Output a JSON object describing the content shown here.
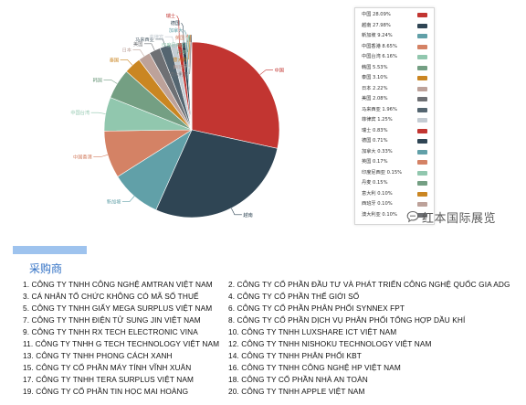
{
  "chart_data": {
    "type": "pie",
    "series": [
      {
        "label": "中国",
        "value": 28.09,
        "display": "28.09%",
        "color": "#c23531"
      },
      {
        "label": "越南",
        "value": 27.98,
        "display": "27.98%",
        "color": "#2f4554"
      },
      {
        "label": "新加坡",
        "value": 9.24,
        "display": "9.24%",
        "color": "#61a0a8"
      },
      {
        "label": "中国香港",
        "value": 8.65,
        "display": "8.65%",
        "color": "#d48265"
      },
      {
        "label": "中国台湾",
        "value": 6.16,
        "display": "6.16%",
        "color": "#91c7ae"
      },
      {
        "label": "韩国",
        "value": 5.53,
        "display": "5.53%",
        "color": "#749f83"
      },
      {
        "label": "泰国",
        "value": 3.1,
        "display": "3.10%",
        "color": "#ca8622"
      },
      {
        "label": "日本",
        "value": 2.22,
        "display": "2.22%",
        "color": "#bda29a"
      },
      {
        "label": "美国",
        "value": 2.08,
        "display": "2.08%",
        "color": "#6e7074"
      },
      {
        "label": "马来西亚",
        "value": 1.96,
        "display": "1.96%",
        "color": "#546570"
      },
      {
        "label": "菲律宾",
        "value": 1.25,
        "display": "1.25%",
        "color": "#c4ccd3"
      },
      {
        "label": "瑞士",
        "value": 0.83,
        "display": "0.83%",
        "color": "#c23531"
      },
      {
        "label": "德国",
        "value": 0.71,
        "display": "0.71%",
        "color": "#2f4554"
      },
      {
        "label": "加拿大",
        "value": 0.33,
        "display": "0.33%",
        "color": "#61a0a8"
      },
      {
        "label": "英国",
        "value": 0.17,
        "display": "0.17%",
        "color": "#d48265"
      },
      {
        "label": "印度尼西亚",
        "value": 0.15,
        "display": "0.15%",
        "color": "#91c7ae"
      },
      {
        "label": "丹麦",
        "value": 0.15,
        "display": "0.15%",
        "color": "#749f83"
      },
      {
        "label": "意大利",
        "value": 0.1,
        "display": "0.10%",
        "color": "#ca8622"
      },
      {
        "label": "西班牙",
        "value": 0.1,
        "display": "0.10%",
        "color": "#bda29a"
      },
      {
        "label": "澳大利亚",
        "value": 0.1,
        "display": "0.10%",
        "color": "#6e7074"
      }
    ]
  },
  "watermark": {
    "text": "红本国际展览",
    "icon": "chat-bubble-icon"
  },
  "buyers_section": {
    "title": "采购商",
    "accent_color": "#9ec3ee",
    "items": [
      "1. CÔNG TY TNHH CÔNG NGHỆ AMTRAN VIỆT NAM",
      "2. CÔNG TY CỔ PHẦN ĐẦU TƯ VÀ PHÁT TRIỂN CÔNG NGHỆ QUỐC GIA ADG",
      "3. CÁ NHÂN TỔ CHỨC KHÔNG CÓ MÃ SỐ THUẾ",
      "4. CÔNG TY CỔ PHẦN THẾ GIỚI SỐ",
      "5. CÔNG TY TNHH GIẤY MEGA SURPLUS VIỆT NAM",
      "6. CÔNG TY CỔ PHẦN PHÂN PHỐI SYNNEX FPT",
      "7. CÔNG TY TNHH ĐIỆN TỬ SUNG JIN VIỆT NAM",
      "8. CÔNG TY CỔ PHẦN DỊCH VỤ PHÂN PHỐI TỔNG HỢP DẦU KHÍ",
      "9. CÔNG TY TNHH RX TECH ELECTRONIC VINA",
      "10. CÔNG TY TNHH LUXSHARE ICT VIỆT NAM",
      "11. CÔNG TY TNHH G TECH TECHNOLOGY VIỆT NAM",
      "12. CÔNG TY TNHH NISHOKU TECHNOLOGY VIỆT NAM",
      "13. CÔNG TY TNHH PHONG CÁCH XANH",
      "14. CÔNG TY TNHH PHÂN PHỐI KBT",
      "15. CÔNG TY CỔ PHẦN MÁY TÍNH VĨNH XUÂN",
      "16. CÔNG TY TNHH CÔNG NGHỆ HP VIỆT NAM",
      "17. CÔNG TY TNHH TERA SURPLUS VIỆT NAM",
      "18. CÔNG TY CỔ PHẦN NHÀ AN TOÀN",
      "19. CÔNG TY CỔ PHẦN TIN HỌC MAI HOÀNG",
      "20. CÔNG TY TNHH APPLE VIỆT NAM"
    ]
  }
}
